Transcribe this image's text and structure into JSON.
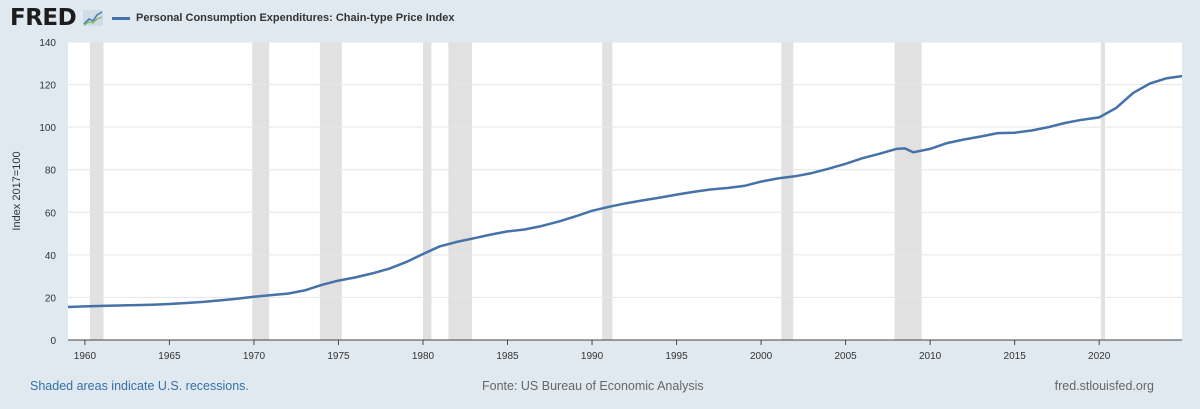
{
  "header": {
    "logo_text": "FRED",
    "logo_icon": "trend-line-icon",
    "legend_label": "Personal Consumption Expenditures: Chain-type Price Index",
    "legend_color": "#4572a7"
  },
  "footer": {
    "recession_note": "Shaded areas indicate U.S. recessions.",
    "source": "Fonte: US Bureau of Economic Analysis",
    "site": "fred.stlouisfed.org"
  },
  "chart_data": {
    "type": "line",
    "title": "",
    "ylabel": "Index 2017=100",
    "xlabel": "",
    "xlim": [
      1959,
      2024.9
    ],
    "ylim": [
      0,
      140
    ],
    "x_ticks": [
      1960,
      1965,
      1970,
      1975,
      1980,
      1985,
      1990,
      1995,
      2000,
      2005,
      2010,
      2015,
      2020
    ],
    "y_ticks": [
      0,
      20,
      40,
      60,
      80,
      100,
      120,
      140
    ],
    "grid": true,
    "recessions": [
      [
        1960.3,
        1961.1
      ],
      [
        1969.9,
        1970.9
      ],
      [
        1973.9,
        1975.2
      ],
      [
        1980.0,
        1980.5
      ],
      [
        1981.5,
        1982.9
      ],
      [
        1990.6,
        1991.2
      ],
      [
        2001.2,
        2001.9
      ],
      [
        2007.9,
        2009.5
      ],
      [
        2020.1,
        2020.35
      ]
    ],
    "series": [
      {
        "name": "Personal Consumption Expenditures: Chain-type Price Index",
        "color": "#4572a7",
        "x": [
          1959,
          1960,
          1961,
          1962,
          1963,
          1964,
          1965,
          1966,
          1967,
          1968,
          1969,
          1970,
          1971,
          1972,
          1973,
          1974,
          1975,
          1976,
          1977,
          1978,
          1979,
          1980,
          1981,
          1982,
          1983,
          1984,
          1985,
          1986,
          1987,
          1988,
          1989,
          1990,
          1991,
          1992,
          1993,
          1994,
          1995,
          1996,
          1997,
          1998,
          1999,
          2000,
          2001,
          2002,
          2003,
          2004,
          2005,
          2006,
          2007,
          2008,
          2008.5,
          2009,
          2010,
          2011,
          2012,
          2013,
          2014,
          2015,
          2016,
          2017,
          2018,
          2019,
          2020,
          2021,
          2022,
          2023,
          2024,
          2024.9
        ],
        "y": [
          15.5,
          15.8,
          16.0,
          16.2,
          16.4,
          16.6,
          16.9,
          17.4,
          17.9,
          18.6,
          19.4,
          20.3,
          21.1,
          21.8,
          23.3,
          25.9,
          27.9,
          29.4,
          31.3,
          33.5,
          36.6,
          40.4,
          44.0,
          46.1,
          47.8,
          49.5,
          51.0,
          51.9,
          53.5,
          55.6,
          58.0,
          60.7,
          62.6,
          64.2,
          65.6,
          66.9,
          68.3,
          69.6,
          70.7,
          71.4,
          72.4,
          74.4,
          75.9,
          76.9,
          78.4,
          80.5,
          82.8,
          85.4,
          87.5,
          89.8,
          90.0,
          88.2,
          89.8,
          92.5,
          94.2,
          95.6,
          97.2,
          97.4,
          98.4,
          100.0,
          102.0,
          103.5,
          104.6,
          109.0,
          116.0,
          120.5,
          123.0,
          124.0
        ]
      }
    ]
  }
}
